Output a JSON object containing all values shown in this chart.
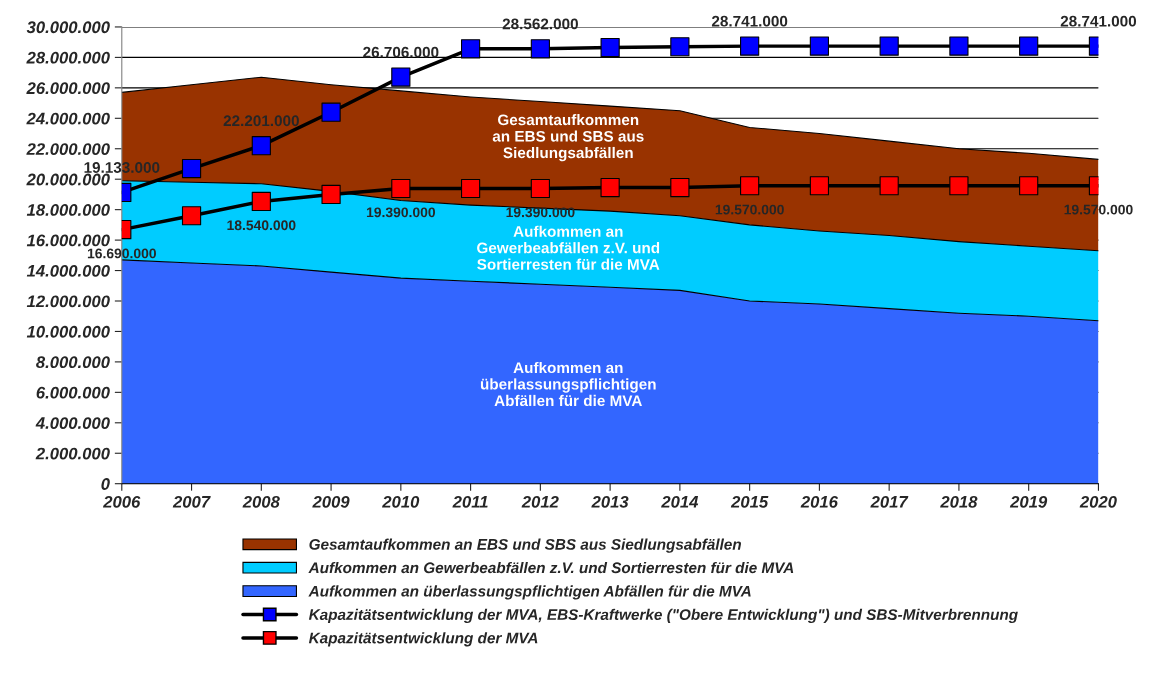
{
  "chart_data": {
    "type": "area",
    "stacked": true,
    "categories": [
      "2006",
      "2007",
      "2008",
      "2009",
      "2010",
      "2011",
      "2012",
      "2013",
      "2014",
      "2015",
      "2016",
      "2017",
      "2018",
      "2019",
      "2020"
    ],
    "series": [
      {
        "name": "Aufkommen an überlassungspflichtigen Abfällen für die MVA",
        "color": "#3366ff",
        "values": [
          14700000,
          14500000,
          14300000,
          13900000,
          13500000,
          13300000,
          13100000,
          12900000,
          12700000,
          12000000,
          11800000,
          11500000,
          11200000,
          11000000,
          10700000
        ]
      },
      {
        "name": "Aufkommen an Gewerbeabfällen z.V. und Sortierresten für die MVA",
        "color": "#00ccff",
        "values": [
          5200000,
          5300000,
          5400000,
          5300000,
          5100000,
          5000000,
          5000000,
          5000000,
          4900000,
          5000000,
          4800000,
          4800000,
          4700000,
          4600000,
          4600000
        ]
      },
      {
        "name": "Gesamtaufkommen an EBS und SBS aus Siedlungsabfällen",
        "color": "#993300",
        "values": [
          5800000,
          6400000,
          7000000,
          7000000,
          7200000,
          7100000,
          7000000,
          6900000,
          6900000,
          6400000,
          6400000,
          6200000,
          6100000,
          6100000,
          6000000
        ]
      },
      {
        "name": "Kapazitätsentwicklung der MVA, EBS-Kraftwerke (\"Obere Entwicklung\") und SBS-Mitverbrennung",
        "type": "line",
        "marker": "square",
        "color": "#0000ff",
        "values": [
          19133000,
          20700000,
          22201000,
          24400000,
          26706000,
          28562000,
          28562000,
          28650000,
          28700000,
          28741000,
          28741000,
          28741000,
          28741000,
          28741000,
          28741000
        ],
        "value_labels": [
          "19.133.000",
          null,
          "22.201.000",
          null,
          "26.706.000",
          null,
          "28.562.000",
          null,
          null,
          "28.741.000",
          null,
          null,
          null,
          null,
          "28.741.000"
        ]
      },
      {
        "name": "Kapazitätsentwicklung der MVA",
        "type": "line",
        "marker": "square",
        "color": "#ff0000",
        "values": [
          16690000,
          17600000,
          18540000,
          19000000,
          19390000,
          19390000,
          19390000,
          19450000,
          19450000,
          19570000,
          19570000,
          19570000,
          19570000,
          19570000,
          19570000
        ],
        "value_labels": [
          "16.690.000",
          null,
          "18.540.000",
          null,
          "19.390.000",
          null,
          "19.390.000",
          null,
          null,
          "19.570.000",
          null,
          null,
          null,
          null,
          "19.570.000"
        ]
      }
    ],
    "ylim": [
      0,
      30000000
    ],
    "yticks": [
      0,
      {
        "value": 2000000,
        "label": "2.000.000"
      },
      {
        "value": 4000000,
        "label": "4.000.000"
      },
      {
        "value": 6000000,
        "label": "6.000.000"
      },
      {
        "value": 8000000,
        "label": "8.000.000"
      },
      {
        "value": 10000000,
        "label": "10.000.000"
      },
      {
        "value": 12000000,
        "label": "12.000.000"
      },
      {
        "value": 14000000,
        "label": "14.000.000"
      },
      {
        "value": 16000000,
        "label": "16.000.000"
      },
      {
        "value": 18000000,
        "label": "18.000.000"
      },
      {
        "value": 20000000,
        "label": "20.000.000"
      },
      {
        "value": 22000000,
        "label": "22.000.000"
      },
      {
        "value": 24000000,
        "label": "24.000.000"
      },
      {
        "value": 26000000,
        "label": "26.000.000"
      },
      {
        "value": 28000000,
        "label": "28.000.000"
      },
      {
        "value": 30000000,
        "label": "30.000.000"
      }
    ],
    "annotations": [
      "Gesamtaufkommen\nan EBS und SBS aus\nSiedlungsabfällen",
      "Aufkommen an\nGewerbeabfällen z.V. und\nSortierresten für die MVA",
      "Aufkommen an\nüberlassungspflichtigen\nAbfällen für die MVA"
    ],
    "grid": "y",
    "legend": "bottom",
    "line_style": "solid"
  }
}
